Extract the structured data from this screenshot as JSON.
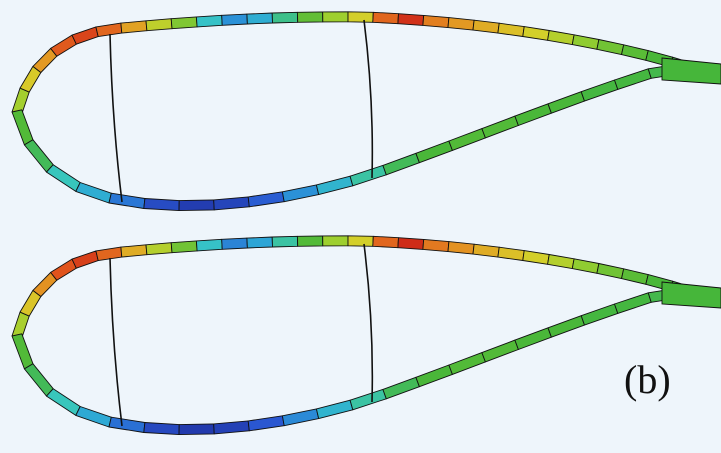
{
  "figure": {
    "panel_label": "(b)",
    "colors": {
      "background": "#eef5fb",
      "skin_green": "#46b63a",
      "outline": "#111111",
      "stress_colormap": [
        "#1f2f9f",
        "#2a57d1",
        "#2b9fd9",
        "#37c7c4",
        "#46b63a",
        "#9ccf2f",
        "#d7cf2a",
        "#e39a23",
        "#e0541c",
        "#c91d17"
      ]
    },
    "blade_sections": [
      {
        "name": "upper-section",
        "upper_skin_levels": [
          0.57,
          0.68,
          0.78,
          0.88,
          0.92,
          0.86,
          0.76,
          0.62,
          0.52,
          0.32,
          0.2,
          0.26,
          0.38,
          0.48,
          0.56,
          0.66,
          0.86,
          0.96,
          0.82,
          0.78,
          0.74,
          0.7,
          0.66,
          0.6,
          0.54,
          0.5,
          0.47,
          0.45,
          0.44,
          0.43
        ],
        "lower_skin_levels": [
          0.46,
          0.42,
          0.34,
          0.26,
          0.16,
          0.08,
          0.04,
          0.06,
          0.12,
          0.2,
          0.28,
          0.36,
          0.42,
          0.45,
          0.46,
          0.46,
          0.45,
          0.45,
          0.44,
          0.44,
          0.43,
          0.43
        ]
      },
      {
        "name": "lower-section",
        "upper_skin_levels": [
          0.58,
          0.69,
          0.79,
          0.89,
          0.93,
          0.86,
          0.74,
          0.6,
          0.5,
          0.32,
          0.18,
          0.24,
          0.36,
          0.46,
          0.56,
          0.66,
          0.86,
          0.97,
          0.83,
          0.79,
          0.74,
          0.7,
          0.66,
          0.6,
          0.54,
          0.5,
          0.47,
          0.45,
          0.44,
          0.43
        ],
        "lower_skin_levels": [
          0.46,
          0.42,
          0.34,
          0.25,
          0.15,
          0.07,
          0.03,
          0.05,
          0.11,
          0.19,
          0.28,
          0.36,
          0.42,
          0.45,
          0.46,
          0.46,
          0.45,
          0.45,
          0.44,
          0.44,
          0.43,
          0.43
        ]
      }
    ]
  }
}
